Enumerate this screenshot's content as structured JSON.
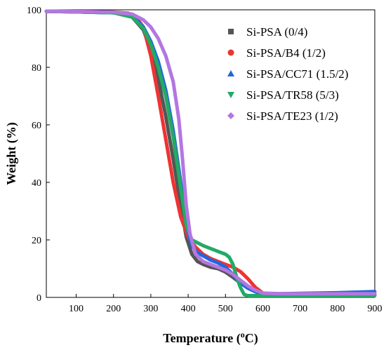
{
  "chart_data": {
    "type": "line",
    "xlabel_main": "Temperature (",
    "xlabel_sup": "o",
    "xlabel_tail": "C)",
    "ylabel": "Weight (%)",
    "xlim": [
      20,
      900
    ],
    "ylim": [
      0,
      100
    ],
    "xticks": [
      100,
      200,
      300,
      400,
      500,
      600,
      700,
      800,
      900
    ],
    "yticks": [
      0,
      20,
      40,
      60,
      80,
      100
    ],
    "legend_position": "top-right",
    "series": [
      {
        "name": "Si-PSA (0/4)",
        "color": "#555555",
        "marker": "square",
        "x": [
          20,
          100,
          200,
          250,
          280,
          300,
          320,
          340,
          360,
          380,
          395,
          410,
          425,
          440,
          460,
          480,
          500,
          520,
          540,
          560,
          580,
          600,
          650,
          700,
          800,
          900
        ],
        "y": [
          99.5,
          99.3,
          99,
          97.5,
          93,
          86,
          76,
          63,
          48,
          32,
          21,
          15,
          12.5,
          11.5,
          10.5,
          10,
          8.8,
          7,
          5,
          3.5,
          2,
          1.3,
          1.2,
          1.2,
          1.2,
          1.2
        ]
      },
      {
        "name": "Si-PSA/B4 (1/2)",
        "color": "#ee3333",
        "marker": "circle",
        "x": [
          20,
          100,
          200,
          240,
          260,
          280,
          300,
          320,
          340,
          360,
          380,
          400,
          420,
          440,
          460,
          480,
          500,
          520,
          540,
          560,
          580,
          600,
          620,
          650,
          700,
          800,
          900
        ],
        "y": [
          99.5,
          99.4,
          99.2,
          98.8,
          97.5,
          94,
          84,
          70,
          55,
          40,
          28,
          21,
          17.5,
          15,
          13.5,
          12.5,
          11.5,
          10.5,
          9,
          6.5,
          3.5,
          1.5,
          1,
          1,
          1,
          1,
          1
        ]
      },
      {
        "name": "Si-PSA/CC71 (1.5/2)",
        "color": "#2266dd",
        "marker": "triangle-up",
        "x": [
          20,
          100,
          200,
          250,
          280,
          300,
          320,
          340,
          360,
          380,
          395,
          410,
          425,
          440,
          460,
          480,
          500,
          520,
          540,
          560,
          580,
          600,
          650,
          700,
          800,
          900
        ],
        "y": [
          99.5,
          99.3,
          99,
          97.8,
          94,
          89,
          82,
          72,
          58,
          40,
          25,
          18,
          15.5,
          14.5,
          13,
          12,
          10.5,
          8,
          5,
          3.2,
          2,
          1.3,
          1.3,
          1.4,
          1.6,
          2
        ]
      },
      {
        "name": "Si-PSA/TR58 (5/3)",
        "color": "#22aa66",
        "marker": "triangle-down",
        "x": [
          20,
          100,
          200,
          250,
          280,
          300,
          320,
          340,
          360,
          380,
          395,
          410,
          425,
          440,
          460,
          480,
          500,
          510,
          520,
          530,
          540,
          550,
          560,
          600,
          700,
          800,
          900
        ],
        "y": [
          99.5,
          99.3,
          99,
          97.5,
          93.5,
          88,
          80,
          70,
          56,
          38,
          25,
          20,
          19,
          18,
          17,
          16,
          15,
          14,
          11.5,
          7,
          3.5,
          1,
          0.6,
          0.6,
          0.6,
          0.6,
          0.6
        ]
      },
      {
        "name": "Si-PSA/TE23 (1/2)",
        "color": "#b377e0",
        "marker": "diamond",
        "x": [
          20,
          100,
          200,
          250,
          280,
          300,
          320,
          340,
          360,
          375,
          385,
          395,
          405,
          420,
          440,
          460,
          480,
          500,
          520,
          540,
          560,
          580,
          600,
          650,
          700,
          800,
          900
        ],
        "y": [
          99.5,
          99.4,
          99.2,
          98.5,
          96.5,
          94,
          90,
          84,
          75,
          62,
          48,
          32,
          22,
          15,
          12.5,
          11.5,
          10.5,
          9.5,
          8,
          6,
          4,
          2.5,
          1.5,
          1.3,
          1.3,
          1.3,
          1.3
        ]
      }
    ]
  }
}
